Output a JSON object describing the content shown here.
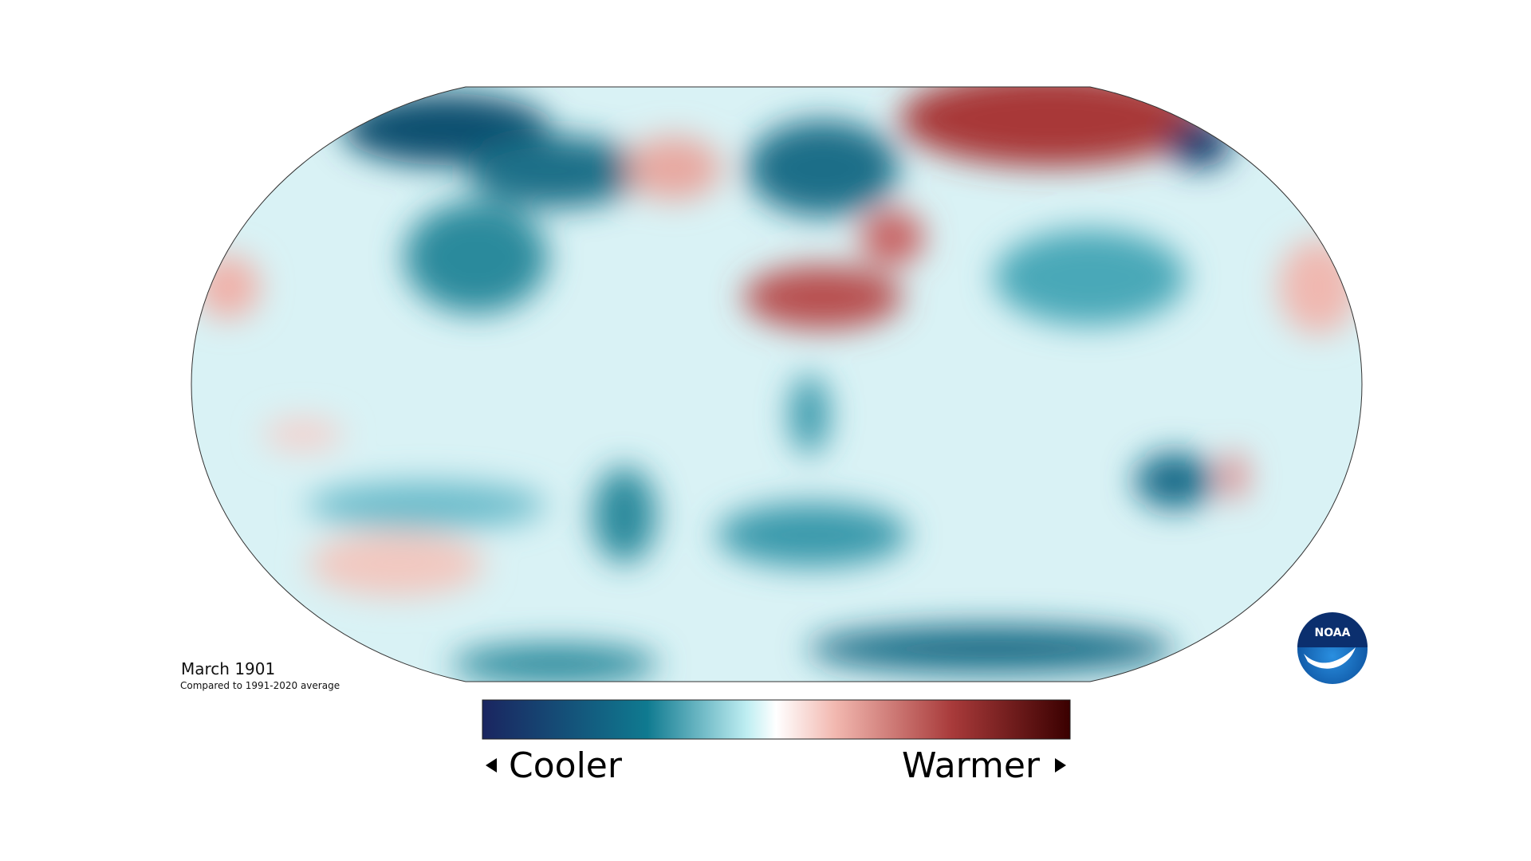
{
  "map_title": "March 1901",
  "map_subtitle": "Compared to 1991-2020 average",
  "legend": {
    "low_label": "Cooler",
    "high_label": "Warmer"
  },
  "logo": {
    "text": "NOAA"
  }
}
